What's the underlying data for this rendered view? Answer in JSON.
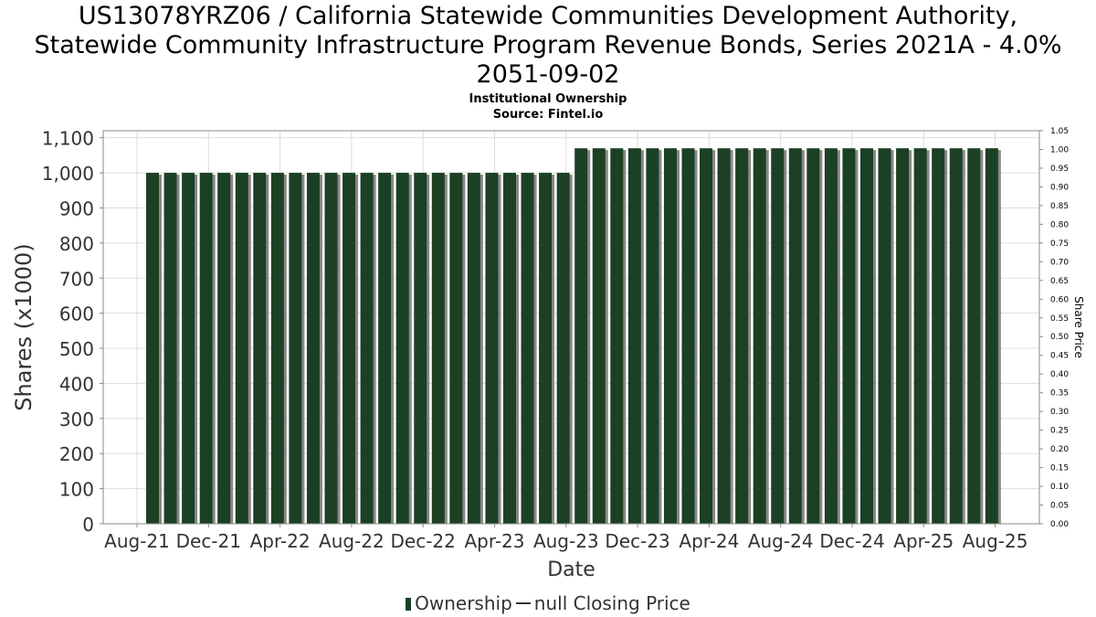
{
  "title_lines": [
    "US13078YRZ06 / California Statewide Communities Development Authority,",
    "Statewide Community Infrastructure Program Revenue Bonds, Series 2021A - 4.0%",
    "2051-09-02"
  ],
  "subtitle": "Institutional Ownership",
  "source": "Source: Fintel.io",
  "legend": {
    "ownership_label": "Ownership",
    "price_label": "null Closing Price"
  },
  "colors": {
    "bar": "#1b4023",
    "bar_shadow": "#888888",
    "grid": "#dddddd",
    "axis": "#888888"
  },
  "chart_data": {
    "type": "bar",
    "title": "US13078YRZ06 / California Statewide Communities Development Authority, Statewide Community Infrastructure Program Revenue Bonds, Series 2021A - 4.0% 2051-09-02",
    "subtitle": "Institutional Ownership",
    "xlabel": "Date",
    "ylabel": "Shares (x1000)",
    "y2label": "Share Price",
    "ylim": [
      0,
      1120
    ],
    "y2lim": [
      0,
      1.05
    ],
    "yticks": [
      "0",
      "100",
      "200",
      "300",
      "400",
      "500",
      "600",
      "700",
      "800",
      "900",
      "1,000",
      "1,100"
    ],
    "y2ticks": [
      "0.00",
      "0.05",
      "0.10",
      "0.15",
      "0.20",
      "0.25",
      "0.30",
      "0.35",
      "0.40",
      "0.45",
      "0.50",
      "0.55",
      "0.60",
      "0.65",
      "0.70",
      "0.75",
      "0.80",
      "0.85",
      "0.90",
      "0.95",
      "1.00",
      "1.05"
    ],
    "xticks": [
      "Aug-21",
      "Dec-21",
      "Apr-22",
      "Aug-22",
      "Dec-22",
      "Apr-23",
      "Aug-23",
      "Dec-23",
      "Apr-24",
      "Aug-24",
      "Dec-24",
      "Apr-25",
      "Aug-25"
    ],
    "grid": true,
    "legend_position": "bottom",
    "series": [
      {
        "name": "Ownership",
        "values": [
          1000,
          1000,
          1000,
          1000,
          1000,
          1000,
          1000,
          1000,
          1000,
          1000,
          1000,
          1000,
          1000,
          1000,
          1000,
          1000,
          1000,
          1000,
          1000,
          1000,
          1000,
          1000,
          1000,
          1000,
          1070,
          1070,
          1070,
          1070,
          1070,
          1070,
          1070,
          1070,
          1070,
          1070,
          1070,
          1070,
          1070,
          1070,
          1070,
          1070,
          1070,
          1070,
          1070,
          1070,
          1070,
          1070,
          1070,
          1070
        ]
      }
    ]
  }
}
